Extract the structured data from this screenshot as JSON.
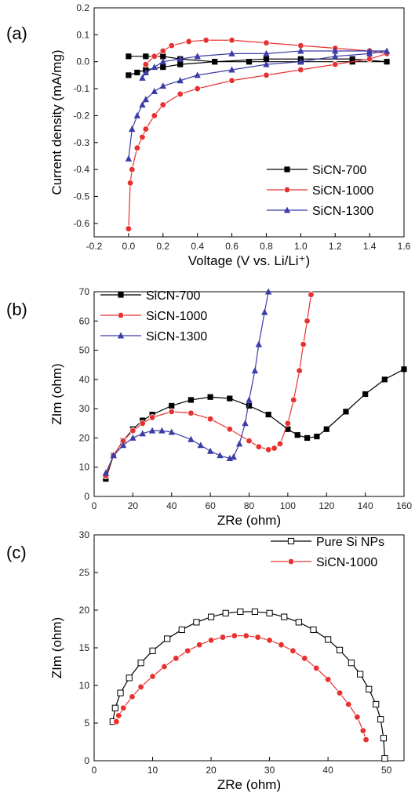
{
  "chart_data": [
    {
      "type": "line",
      "panel": "(a)",
      "xlabel": "Voltage (V vs. Li/Li⁺)",
      "ylabel": "Current density (mA/mg)",
      "xlim": [
        -0.2,
        1.6
      ],
      "ylim": [
        -0.65,
        0.2
      ],
      "xticks": [
        -0.2,
        0.0,
        0.2,
        0.4,
        0.6,
        0.8,
        1.0,
        1.2,
        1.4,
        1.6
      ],
      "yticks": [
        -0.6,
        -0.5,
        -0.4,
        -0.3,
        -0.2,
        -0.1,
        0.0,
        0.1,
        0.2
      ],
      "tick_decimals": 1,
      "legend_position": "bottom-right",
      "series": [
        {
          "name": "SiCN-700",
          "color": "#000000",
          "marker": "square",
          "x": [
            0.0,
            0.05,
            0.1,
            0.2,
            0.3,
            0.5,
            0.8,
            1.0,
            1.3,
            1.5,
            1.3,
            1.0,
            0.7,
            0.5,
            0.3,
            0.2,
            0.1,
            0.0
          ],
          "y": [
            -0.05,
            -0.04,
            -0.03,
            -0.02,
            -0.01,
            0.0,
            0.01,
            0.01,
            0.01,
            0.0,
            0.0,
            0.0,
            0.0,
            0.0,
            0.01,
            0.02,
            0.02,
            0.02
          ]
        },
        {
          "name": "SiCN-1000",
          "color": "#e83030",
          "marker": "circle",
          "x": [
            0.0,
            0.01,
            0.02,
            0.05,
            0.08,
            0.1,
            0.15,
            0.2,
            0.3,
            0.4,
            0.6,
            0.8,
            1.0,
            1.2,
            1.4,
            1.5,
            1.4,
            1.2,
            1.0,
            0.8,
            0.6,
            0.45,
            0.35,
            0.25,
            0.2,
            0.15,
            0.1
          ],
          "y": [
            -0.62,
            -0.45,
            -0.4,
            -0.32,
            -0.28,
            -0.25,
            -0.2,
            -0.16,
            -0.12,
            -0.1,
            -0.07,
            -0.05,
            -0.03,
            -0.01,
            0.01,
            0.03,
            0.04,
            0.05,
            0.06,
            0.07,
            0.08,
            0.08,
            0.075,
            0.06,
            0.04,
            0.02,
            -0.01
          ]
        },
        {
          "name": "SiCN-1300",
          "color": "#3c3ca8",
          "marker": "triangle",
          "x": [
            0.0,
            0.02,
            0.05,
            0.08,
            0.1,
            0.15,
            0.2,
            0.3,
            0.4,
            0.6,
            0.8,
            1.0,
            1.2,
            1.4,
            1.5,
            1.4,
            1.2,
            1.0,
            0.8,
            0.6,
            0.4,
            0.3,
            0.2,
            0.15,
            0.1,
            0.08
          ],
          "y": [
            -0.36,
            -0.25,
            -0.2,
            -0.16,
            -0.14,
            -0.11,
            -0.09,
            -0.07,
            -0.05,
            -0.03,
            -0.01,
            0.0,
            0.02,
            0.03,
            0.04,
            0.04,
            0.04,
            0.04,
            0.03,
            0.03,
            0.02,
            0.01,
            0.0,
            -0.02,
            -0.04,
            -0.06
          ]
        }
      ]
    },
    {
      "type": "line",
      "panel": "(b)",
      "xlabel": "ZRe (ohm)",
      "ylabel": "ZIm (ohm)",
      "xlim": [
        0,
        160
      ],
      "ylim": [
        0,
        70
      ],
      "xticks": [
        0,
        20,
        40,
        60,
        80,
        100,
        120,
        140,
        160
      ],
      "yticks": [
        0,
        10,
        20,
        30,
        40,
        50,
        60,
        70
      ],
      "tick_decimals": 0,
      "legend_position": "top-left",
      "series": [
        {
          "name": "SiCN-700",
          "color": "#000000",
          "marker": "square",
          "x": [
            6,
            10,
            15,
            20,
            25,
            30,
            40,
            50,
            60,
            70,
            80,
            90,
            100,
            105,
            110,
            115,
            120,
            130,
            140,
            150,
            160
          ],
          "y": [
            6,
            14,
            19,
            23,
            26,
            28,
            31,
            33,
            34,
            33.5,
            31,
            28,
            23,
            21,
            20,
            20.5,
            23,
            29,
            35,
            40,
            43.5
          ]
        },
        {
          "name": "SiCN-1000",
          "color": "#e83030",
          "marker": "circle",
          "x": [
            6,
            10,
            15,
            20,
            25,
            30,
            40,
            50,
            60,
            70,
            80,
            85,
            90,
            93,
            96,
            100,
            103,
            106,
            108,
            110,
            112
          ],
          "y": [
            7,
            14,
            19,
            22.5,
            25,
            27,
            29,
            28.5,
            26.5,
            23,
            19,
            17,
            16,
            16.5,
            18,
            25,
            33,
            43,
            52,
            60,
            69
          ]
        },
        {
          "name": "SiCN-1300",
          "color": "#3c3ca8",
          "marker": "triangle",
          "x": [
            6,
            10,
            15,
            20,
            25,
            30,
            35,
            40,
            50,
            55,
            60,
            65,
            70,
            72,
            75,
            78,
            80,
            83,
            85,
            88,
            90
          ],
          "y": [
            8,
            14,
            17.5,
            20,
            21.5,
            22.5,
            22.5,
            22,
            19.5,
            17.5,
            15.5,
            14,
            13,
            13.5,
            18,
            25,
            33,
            43,
            52,
            63,
            70
          ]
        }
      ]
    },
    {
      "type": "line",
      "panel": "(c)",
      "xlabel": "ZRe (ohm)",
      "ylabel": "ZIm (ohm)",
      "xlim": [
        0,
        53
      ],
      "ylim": [
        0,
        30
      ],
      "xticks": [
        0,
        10,
        20,
        30,
        40,
        50
      ],
      "yticks": [
        0,
        5,
        10,
        15,
        20,
        25,
        30
      ],
      "tick_decimals": 0,
      "legend_position": "top-right",
      "series": [
        {
          "name": "Pure Si NPs",
          "color": "#000000",
          "marker": "open-square",
          "x": [
            3.2,
            3.6,
            4.5,
            6,
            8,
            10,
            12.5,
            15,
            17.5,
            20,
            22.5,
            25,
            27.5,
            30,
            32.5,
            35,
            37.5,
            40,
            42,
            44,
            45.5,
            47,
            48.2,
            49,
            49.5,
            49.7
          ],
          "y": [
            5.2,
            7,
            9,
            11,
            13,
            14.6,
            16.2,
            17.4,
            18.4,
            19.1,
            19.6,
            19.8,
            19.8,
            19.6,
            19.1,
            18.4,
            17.4,
            16.1,
            14.7,
            13,
            11.5,
            9.5,
            7.5,
            5.5,
            3,
            0.3
          ]
        },
        {
          "name": "SiCN-1000",
          "color": "#e83030",
          "marker": "circle",
          "x": [
            3.8,
            4.2,
            5,
            6.5,
            8,
            10,
            12,
            14,
            16,
            18,
            20,
            22,
            24,
            26,
            28,
            30,
            32,
            34,
            36,
            38,
            40,
            42,
            43.5,
            45,
            46,
            46.5
          ],
          "y": [
            5.2,
            6,
            7,
            8.5,
            9.8,
            11.2,
            12.5,
            13.6,
            14.6,
            15.4,
            16,
            16.4,
            16.6,
            16.6,
            16.4,
            16,
            15.4,
            14.6,
            13.6,
            12.3,
            10.8,
            9,
            7.5,
            5.8,
            4,
            2.8
          ]
        }
      ]
    }
  ]
}
